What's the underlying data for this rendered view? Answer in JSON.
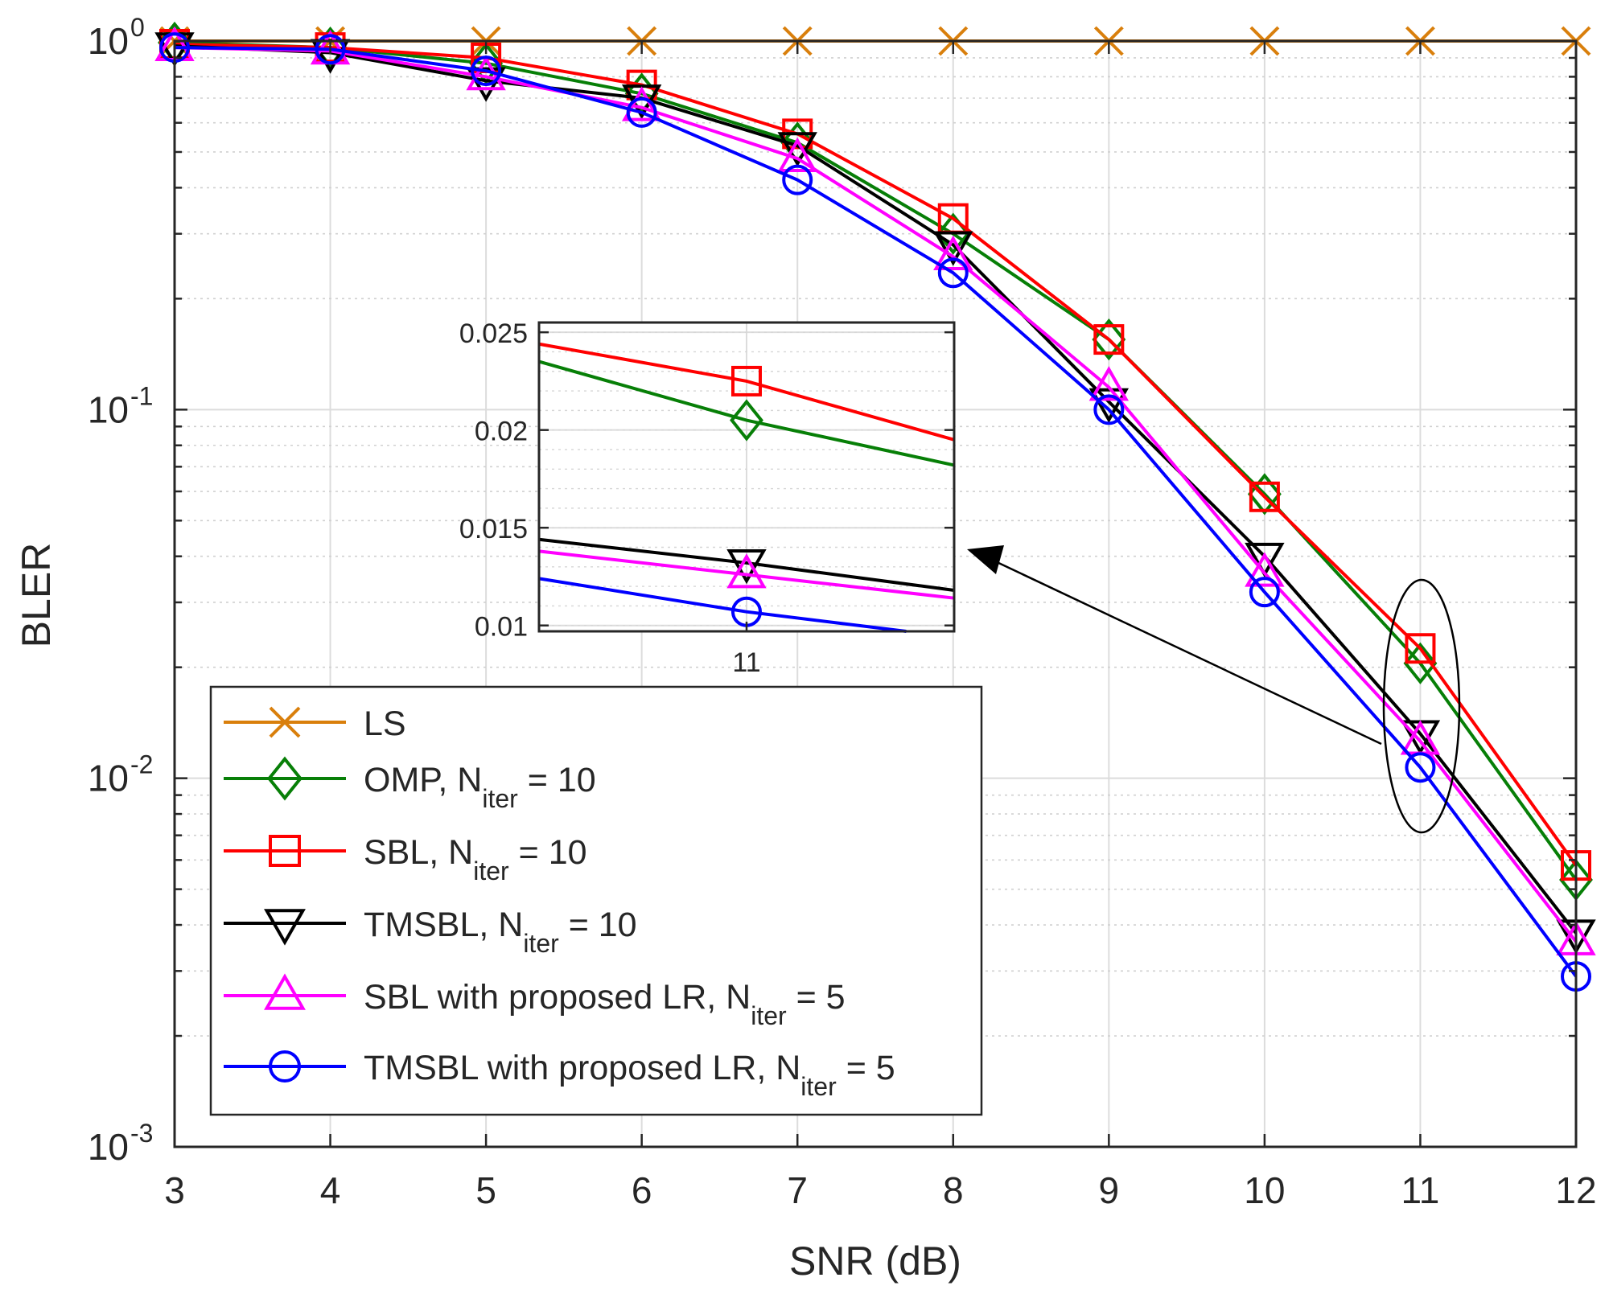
{
  "chart_data": {
    "type": "line",
    "xlabel": "SNR (dB)",
    "ylabel": "BLER",
    "yscale": "log",
    "xlim": [
      3,
      12
    ],
    "ylim": [
      0.001,
      1
    ],
    "grid": true,
    "legend_position": "bottom-left",
    "x_ticks": [
      "3",
      "4",
      "5",
      "6",
      "7",
      "8",
      "9",
      "10",
      "11",
      "12"
    ],
    "y_ticks": [
      {
        "base": "10",
        "exp": "0",
        "value": 1
      },
      {
        "base": "10",
        "exp": "-1",
        "value": 0.1
      },
      {
        "base": "10",
        "exp": "-2",
        "value": 0.01
      },
      {
        "base": "10",
        "exp": "-3",
        "value": 0.001
      }
    ],
    "x": [
      3,
      4,
      5,
      6,
      7,
      8,
      9,
      10,
      11,
      12
    ],
    "series": [
      {
        "name": "LS",
        "name_sub": "",
        "name_tail": "",
        "color": "#D97F0C",
        "marker": "x",
        "values": [
          1,
          1,
          1,
          1,
          1,
          1,
          1,
          1,
          1,
          1
        ]
      },
      {
        "name": "OMP, N",
        "name_sub": "iter",
        "name_tail": " = 10",
        "color": "#077F07",
        "marker": "diamond",
        "values": [
          0.99,
          0.96,
          0.87,
          0.72,
          0.53,
          0.3,
          0.155,
          0.059,
          0.0205,
          0.0053
        ]
      },
      {
        "name": "SBL, N",
        "name_sub": "iter",
        "name_tail": " = 10",
        "color": "#FF0000",
        "marker": "square",
        "values": [
          0.98,
          0.96,
          0.9,
          0.76,
          0.56,
          0.33,
          0.155,
          0.058,
          0.0225,
          0.0058
        ]
      },
      {
        "name": "TMSBL, N",
        "name_sub": "iter",
        "name_tail": " = 10",
        "color": "#000000",
        "marker": "triangle-down",
        "values": [
          0.97,
          0.93,
          0.78,
          0.7,
          0.52,
          0.28,
          0.105,
          0.04,
          0.0132,
          0.0038
        ]
      },
      {
        "name": "SBL with proposed LR, N",
        "name_sub": "iter",
        "name_tail": " = 5",
        "color": "#FF00FF",
        "marker": "triangle-up",
        "values": [
          0.96,
          0.94,
          0.8,
          0.66,
          0.48,
          0.26,
          0.115,
          0.036,
          0.0126,
          0.0036
        ]
      },
      {
        "name": "TMSBL with proposed LR, N",
        "name_sub": "iter",
        "name_tail": " = 5",
        "color": "#0000FF",
        "marker": "circle",
        "values": [
          0.96,
          0.95,
          0.83,
          0.64,
          0.42,
          0.235,
          0.1,
          0.032,
          0.0107,
          0.0029
        ]
      }
    ],
    "inset": {
      "x_tick": "11",
      "y_ticks": [
        "0.025",
        "0.02",
        "0.015",
        "0.01"
      ],
      "y_tick_values": [
        0.025,
        0.02,
        0.015,
        0.01
      ],
      "xlim": [
        10.333,
        11.667
      ],
      "ylim": [
        0.0097,
        0.0255
      ],
      "segments": [
        {
          "color": "#077F07",
          "marker": "diamond",
          "y0": 0.0235,
          "y11": 0.0205,
          "y1": 0.0182
        },
        {
          "color": "#FF0000",
          "marker": "square",
          "y0": 0.0244,
          "y11": 0.0225,
          "y1": 0.0195
        },
        {
          "color": "#000000",
          "marker": "triangle-down",
          "y0": 0.0144,
          "y11": 0.0132,
          "y1": 0.0118
        },
        {
          "color": "#FF00FF",
          "marker": "triangle-up",
          "y0": 0.0138,
          "y11": 0.0126,
          "y1": 0.0114
        },
        {
          "color": "#0000FF",
          "marker": "circle",
          "y0": 0.0124,
          "y11": 0.0107,
          "y1": 0.0094
        }
      ]
    }
  }
}
